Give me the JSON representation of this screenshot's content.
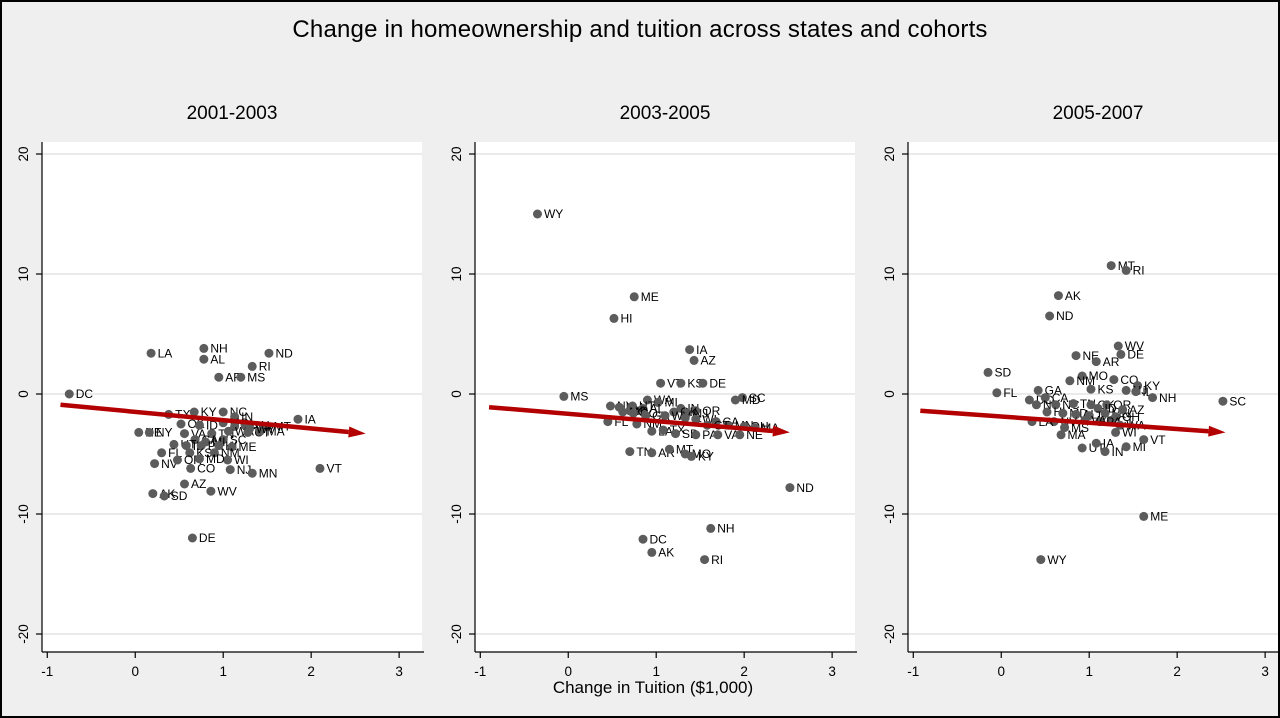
{
  "figure": {
    "title": "Change in homeownership and tuition across states and cohorts",
    "xlabel": "Change in Tuition ($1,000)",
    "x_ticks": [
      -1,
      0,
      1,
      2,
      3
    ],
    "y_ticks": [
      20,
      10,
      0,
      -10,
      -20
    ],
    "xlim": [
      -1.06,
      3.26
    ],
    "ylim": [
      -21.5,
      21.0
    ],
    "grid": true,
    "legend": "none",
    "colors": {
      "page_bg": "#efefef",
      "plot_bg": "#ffffff",
      "grid": "#e4e4e4",
      "axis": "#000000",
      "marker": "#5c5c5c",
      "point_label": "#000000",
      "arrow": "#b30000"
    }
  },
  "chart_data": [
    {
      "type": "scatter",
      "title": "2001-2003",
      "trend": {
        "x1": -0.85,
        "y1": -0.9,
        "x2": 2.62,
        "y2": -3.3
      },
      "points": [
        {
          "label": "DC",
          "x": -0.75,
          "y": 0.0
        },
        {
          "label": "LA",
          "x": 0.18,
          "y": 3.4
        },
        {
          "label": "NH",
          "x": 0.78,
          "y": 3.8
        },
        {
          "label": "AL",
          "x": 0.78,
          "y": 2.9
        },
        {
          "label": "ND",
          "x": 1.52,
          "y": 3.4
        },
        {
          "label": "RI",
          "x": 1.33,
          "y": 2.3
        },
        {
          "label": "AR",
          "x": 0.95,
          "y": 1.4
        },
        {
          "label": "MS",
          "x": 1.2,
          "y": 1.4
        },
        {
          "label": "TX",
          "x": 0.38,
          "y": -1.7
        },
        {
          "label": "KY",
          "x": 0.67,
          "y": -1.5
        },
        {
          "label": "NC",
          "x": 1.0,
          "y": -1.5
        },
        {
          "label": "IN",
          "x": 1.13,
          "y": -1.9
        },
        {
          "label": "IA",
          "x": 1.85,
          "y": -2.1
        },
        {
          "label": "OK",
          "x": 0.52,
          "y": -2.5
        },
        {
          "label": "ID",
          "x": 0.73,
          "y": -2.6
        },
        {
          "label": "MO",
          "x": 1.0,
          "y": -2.4
        },
        {
          "label": "GA",
          "x": 1.13,
          "y": -2.7
        },
        {
          "label": "OH",
          "x": 1.25,
          "y": -2.6
        },
        {
          "label": "MT",
          "x": 1.5,
          "y": -2.7
        },
        {
          "label": "NE",
          "x": 0.04,
          "y": -3.2
        },
        {
          "label": "NY",
          "x": 0.16,
          "y": -3.2
        },
        {
          "label": "VA",
          "x": 0.56,
          "y": -3.3
        },
        {
          "label": "TN",
          "x": 0.87,
          "y": -3.3
        },
        {
          "label": "WA",
          "x": 1.06,
          "y": -3.1
        },
        {
          "label": "CT",
          "x": 1.28,
          "y": -3.2
        },
        {
          "label": "MA",
          "x": 1.42,
          "y": -3.1
        },
        {
          "label": "WY",
          "x": 1.3,
          "y": -2.9
        },
        {
          "label": "CA",
          "x": 0.68,
          "y": -3.8
        },
        {
          "label": "SC",
          "x": 1.0,
          "y": -3.8
        },
        {
          "label": "MI",
          "x": 0.8,
          "y": -4.0
        },
        {
          "label": "UT",
          "x": 0.44,
          "y": -4.2
        },
        {
          "label": "IL",
          "x": 0.58,
          "y": -4.3
        },
        {
          "label": "PA",
          "x": 0.75,
          "y": -4.3
        },
        {
          "label": "HI",
          "x": 0.95,
          "y": -4.3
        },
        {
          "label": "ME",
          "x": 1.1,
          "y": -4.4
        },
        {
          "label": "FL",
          "x": 0.3,
          "y": -4.9
        },
        {
          "label": "KS",
          "x": 0.62,
          "y": -4.9
        },
        {
          "label": "NM",
          "x": 0.9,
          "y": -4.9
        },
        {
          "label": "WI",
          "x": 1.05,
          "y": -5.5
        },
        {
          "label": "NV",
          "x": 0.22,
          "y": -5.8
        },
        {
          "label": "OR",
          "x": 0.48,
          "y": -5.5
        },
        {
          "label": "MD",
          "x": 0.73,
          "y": -5.4
        },
        {
          "label": "CO",
          "x": 0.63,
          "y": -6.2
        },
        {
          "label": "NJ",
          "x": 1.08,
          "y": -6.3
        },
        {
          "label": "MN",
          "x": 1.33,
          "y": -6.6
        },
        {
          "label": "VT",
          "x": 2.1,
          "y": -6.2
        },
        {
          "label": "AZ",
          "x": 0.56,
          "y": -7.5
        },
        {
          "label": "WV",
          "x": 0.86,
          "y": -8.1
        },
        {
          "label": "AK",
          "x": 0.2,
          "y": -8.3
        },
        {
          "label": "SD",
          "x": 0.33,
          "y": -8.5
        },
        {
          "label": "DE",
          "x": 0.65,
          "y": -12.0
        }
      ]
    },
    {
      "type": "scatter",
      "title": "2003-2005",
      "trend": {
        "x1": -0.9,
        "y1": -1.1,
        "x2": 2.52,
        "y2": -3.2
      },
      "points": [
        {
          "label": "WY",
          "x": -0.35,
          "y": 15.0
        },
        {
          "label": "ME",
          "x": 0.75,
          "y": 8.1
        },
        {
          "label": "HI",
          "x": 0.52,
          "y": 6.3
        },
        {
          "label": "IA",
          "x": 1.38,
          "y": 3.7
        },
        {
          "label": "AZ",
          "x": 1.43,
          "y": 2.8
        },
        {
          "label": "VT",
          "x": 1.05,
          "y": 0.9
        },
        {
          "label": "KS",
          "x": 1.28,
          "y": 0.9
        },
        {
          "label": "DE",
          "x": 1.53,
          "y": 0.9
        },
        {
          "label": "MS",
          "x": -0.05,
          "y": -0.2
        },
        {
          "label": "SC",
          "x": 1.98,
          "y": -0.3
        },
        {
          "label": "MD",
          "x": 1.9,
          "y": -0.5
        },
        {
          "label": "WA",
          "x": 0.9,
          "y": -0.5
        },
        {
          "label": "MI",
          "x": 1.02,
          "y": -0.7
        },
        {
          "label": "NY",
          "x": 0.48,
          "y": -1.0
        },
        {
          "label": "NV",
          "x": 0.58,
          "y": -1.1
        },
        {
          "label": "UT",
          "x": 0.73,
          "y": -1.0
        },
        {
          "label": "AL",
          "x": 0.85,
          "y": -1.2
        },
        {
          "label": "IN",
          "x": 1.28,
          "y": -1.2
        },
        {
          "label": "OR",
          "x": 1.45,
          "y": -1.4
        },
        {
          "label": "OK",
          "x": 1.2,
          "y": -1.5
        },
        {
          "label": "NJ",
          "x": 1.35,
          "y": -1.6
        },
        {
          "label": "ID",
          "x": 0.7,
          "y": -1.4
        },
        {
          "label": "NC",
          "x": 0.62,
          "y": -1.5
        },
        {
          "label": "CO",
          "x": 0.74,
          "y": -1.6
        },
        {
          "label": "GA",
          "x": 0.88,
          "y": -1.8
        },
        {
          "label": "WV",
          "x": 1.1,
          "y": -1.8
        },
        {
          "label": "IL",
          "x": 1.33,
          "y": -2.0
        },
        {
          "label": "WI",
          "x": 1.45,
          "y": -2.1
        },
        {
          "label": "CA",
          "x": 1.68,
          "y": -2.3
        },
        {
          "label": "MN",
          "x": 1.82,
          "y": -2.6
        },
        {
          "label": "CT",
          "x": 1.58,
          "y": -2.6
        },
        {
          "label": "OH",
          "x": 2.0,
          "y": -2.7
        },
        {
          "label": "MA",
          "x": 2.12,
          "y": -2.8
        },
        {
          "label": "FL",
          "x": 0.45,
          "y": -2.3
        },
        {
          "label": "NM",
          "x": 0.78,
          "y": -2.5
        },
        {
          "label": "LA",
          "x": 0.95,
          "y": -3.1
        },
        {
          "label": "TX",
          "x": 1.08,
          "y": -3.0
        },
        {
          "label": "SD",
          "x": 1.22,
          "y": -3.3
        },
        {
          "label": "PA",
          "x": 1.45,
          "y": -3.4
        },
        {
          "label": "VA",
          "x": 1.7,
          "y": -3.4
        },
        {
          "label": "NE",
          "x": 1.95,
          "y": -3.4
        },
        {
          "label": "TN",
          "x": 0.7,
          "y": -4.8
        },
        {
          "label": "AR",
          "x": 0.95,
          "y": -4.9
        },
        {
          "label": "MT",
          "x": 1.15,
          "y": -4.6
        },
        {
          "label": "MO",
          "x": 1.33,
          "y": -5.0
        },
        {
          "label": "KY",
          "x": 1.4,
          "y": -5.2
        },
        {
          "label": "ND",
          "x": 2.52,
          "y": -7.8
        },
        {
          "label": "NH",
          "x": 1.62,
          "y": -11.2
        },
        {
          "label": "DC",
          "x": 0.85,
          "y": -12.1
        },
        {
          "label": "AK",
          "x": 0.95,
          "y": -13.2
        },
        {
          "label": "RI",
          "x": 1.55,
          "y": -13.8
        }
      ]
    },
    {
      "type": "scatter",
      "title": "2005-2007",
      "trend": {
        "x1": -0.92,
        "y1": -1.4,
        "x2": 2.55,
        "y2": -3.2
      },
      "points": [
        {
          "label": "MT",
          "x": 1.25,
          "y": 10.7
        },
        {
          "label": "RI",
          "x": 1.42,
          "y": 10.3
        },
        {
          "label": "AK",
          "x": 0.65,
          "y": 8.2
        },
        {
          "label": "ND",
          "x": 0.55,
          "y": 6.5
        },
        {
          "label": "WV",
          "x": 1.33,
          "y": 4.0
        },
        {
          "label": "DE",
          "x": 1.36,
          "y": 3.3
        },
        {
          "label": "NE",
          "x": 0.85,
          "y": 3.2
        },
        {
          "label": "AR",
          "x": 1.08,
          "y": 2.7
        },
        {
          "label": "SD",
          "x": -0.15,
          "y": 1.8
        },
        {
          "label": "MO",
          "x": 0.92,
          "y": 1.5
        },
        {
          "label": "NM",
          "x": 0.78,
          "y": 1.1
        },
        {
          "label": "CO",
          "x": 1.28,
          "y": 1.2
        },
        {
          "label": "KS",
          "x": 1.02,
          "y": 0.4
        },
        {
          "label": "KY",
          "x": 1.55,
          "y": 0.7
        },
        {
          "label": "FL",
          "x": -0.05,
          "y": 0.1
        },
        {
          "label": "GA",
          "x": 0.42,
          "y": 0.3
        },
        {
          "label": "NJ",
          "x": 1.42,
          "y": 0.3
        },
        {
          "label": "IL",
          "x": 1.53,
          "y": 0.2
        },
        {
          "label": "NH",
          "x": 1.72,
          "y": -0.3
        },
        {
          "label": "SC",
          "x": 2.52,
          "y": -0.6
        },
        {
          "label": "DC",
          "x": 0.32,
          "y": -0.5
        },
        {
          "label": "CA",
          "x": 0.5,
          "y": -0.3
        },
        {
          "label": "NY",
          "x": 0.4,
          "y": -0.9
        },
        {
          "label": "NC",
          "x": 0.62,
          "y": -0.9
        },
        {
          "label": "TN",
          "x": 0.82,
          "y": -0.8
        },
        {
          "label": "OK",
          "x": 1.02,
          "y": -0.9
        },
        {
          "label": "OR",
          "x": 1.2,
          "y": -0.9
        },
        {
          "label": "ID",
          "x": 1.1,
          "y": -1.2
        },
        {
          "label": "HI",
          "x": 0.52,
          "y": -1.5
        },
        {
          "label": "MD",
          "x": 0.7,
          "y": -1.6
        },
        {
          "label": "AL",
          "x": 0.85,
          "y": -1.7
        },
        {
          "label": "TX",
          "x": 1.0,
          "y": -1.8
        },
        {
          "label": "MN",
          "x": 1.18,
          "y": -1.6
        },
        {
          "label": "AZ",
          "x": 1.38,
          "y": -1.3
        },
        {
          "label": "OH",
          "x": 1.3,
          "y": -1.9
        },
        {
          "label": "CT",
          "x": 1.25,
          "y": -2.2
        },
        {
          "label": "PA",
          "x": 1.12,
          "y": -2.3
        },
        {
          "label": "VA",
          "x": 0.95,
          "y": -2.2
        },
        {
          "label": "NV",
          "x": 0.6,
          "y": -2.3
        },
        {
          "label": "LA",
          "x": 0.35,
          "y": -2.3
        },
        {
          "label": "MS",
          "x": 0.72,
          "y": -2.8
        },
        {
          "label": "WA",
          "x": 1.35,
          "y": -2.6
        },
        {
          "label": "WI",
          "x": 1.3,
          "y": -3.2
        },
        {
          "label": "MA",
          "x": 0.68,
          "y": -3.4
        },
        {
          "label": "UT",
          "x": 0.92,
          "y": -4.5
        },
        {
          "label": "IA",
          "x": 1.08,
          "y": -4.1
        },
        {
          "label": "IN",
          "x": 1.18,
          "y": -4.8
        },
        {
          "label": "MI",
          "x": 1.42,
          "y": -4.4
        },
        {
          "label": "VT",
          "x": 1.62,
          "y": -3.8
        },
        {
          "label": "ME",
          "x": 1.62,
          "y": -10.2
        },
        {
          "label": "WY",
          "x": 0.45,
          "y": -13.8
        }
      ]
    }
  ]
}
